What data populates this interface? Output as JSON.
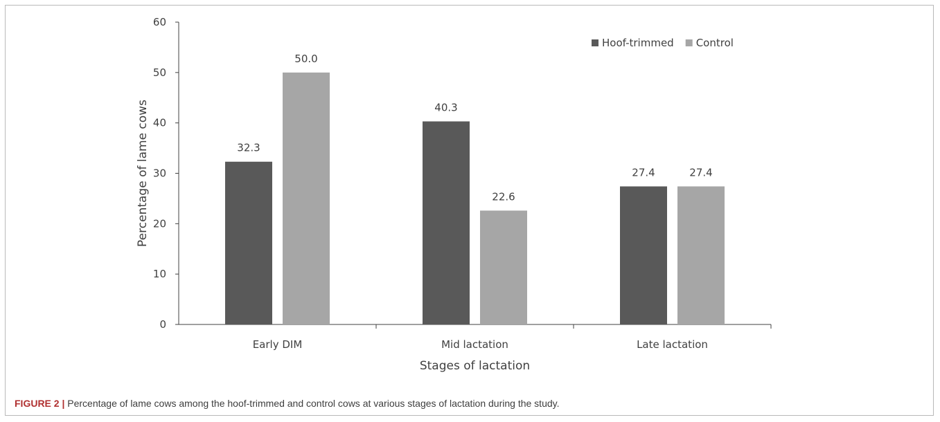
{
  "chart_data": {
    "type": "bar",
    "title": "",
    "xlabel": "Stages of lactation",
    "ylabel": "Percentage of lame cows",
    "categories": [
      "Early DIM",
      "Mid lactation",
      "Late lactation"
    ],
    "series": [
      {
        "name": "Hoof-trimmed",
        "values": [
          32.3,
          40.3,
          27.4
        ],
        "color": "#595959"
      },
      {
        "name": "Control",
        "values": [
          50.0,
          22.6,
          27.4
        ],
        "color": "#a6a6a6"
      }
    ],
    "ylim": [
      0,
      60
    ],
    "yticks": [
      0,
      10,
      20,
      30,
      40,
      50,
      60
    ],
    "grid": false,
    "legend": "top-right",
    "data_labels": true,
    "value_decimals": 1
  },
  "caption": {
    "label": "FIGURE 2 |",
    "text": " Percentage of lame cows among the hoof-trimmed and control cows at various stages of lactation during the study."
  }
}
